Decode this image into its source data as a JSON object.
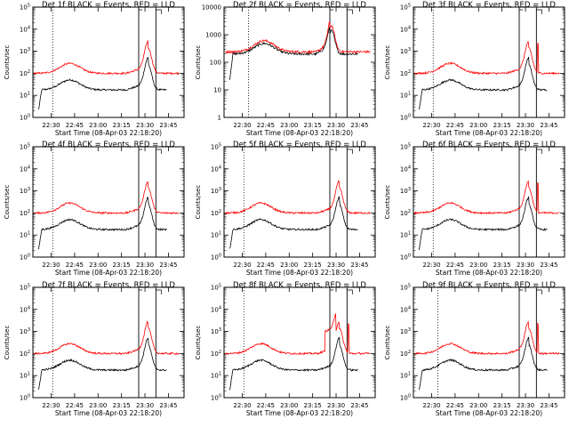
{
  "chart_data": [
    {
      "type": "line",
      "title": "Det 1f BLACK = Events, RED = LLD",
      "ylabel": "Counts/sec",
      "xlabel": "Start Time (08-Apr-03 22:18:20)",
      "ylim": [
        1,
        100000
      ],
      "y_scale": "log",
      "x_ticks": [
        "22:30",
        "22:45",
        "23:00",
        "23:15",
        "23:30",
        "23:45"
      ],
      "y_ticks": [
        "10^0",
        "10^1",
        "10^2",
        "10^3",
        "10^4",
        "10^5"
      ],
      "series": [
        {
          "name": "BLACK = Events",
          "color": "#000000"
        },
        {
          "name": "RED = LLD",
          "color": "#ff0000"
        }
      ]
    },
    {
      "type": "line",
      "title": "Det 2f BLACK = Events, RED = LLD",
      "ylabel": "Counts/sec",
      "xlabel": "Start Time (08-Apr-03 22:18:20)",
      "ylim": [
        1,
        10000
      ],
      "y_scale": "log",
      "x_ticks": [
        "22:30",
        "22:45",
        "23:00",
        "23:15",
        "23:30",
        "23:45"
      ],
      "y_ticks": [
        "1",
        "10",
        "100",
        "1000",
        "10000"
      ],
      "series": [
        {
          "name": "BLACK = Events",
          "color": "#000000"
        },
        {
          "name": "RED = LLD",
          "color": "#ff0000"
        }
      ]
    },
    {
      "type": "line",
      "title": "Det 3f BLACK = Events, RED = LLD",
      "ylabel": "Counts/sec",
      "xlabel": "Start Time (08-Apr-03 22:18:20)",
      "ylim": [
        1,
        100000
      ],
      "y_scale": "log",
      "x_ticks": [
        "22:30",
        "22:45",
        "23:00",
        "23:15",
        "23:30",
        "23:45"
      ],
      "y_ticks": [
        "10^0",
        "10^1",
        "10^2",
        "10^3",
        "10^4",
        "10^5"
      ],
      "series": [
        {
          "name": "BLACK = Events",
          "color": "#000000"
        },
        {
          "name": "RED = LLD",
          "color": "#ff0000"
        }
      ]
    },
    {
      "type": "line",
      "title": "Det 4f BLACK = Events, RED = LLD",
      "ylabel": "Counts/sec",
      "xlabel": "Start Time (08-Apr-03 22:18:20)",
      "ylim": [
        1,
        100000
      ],
      "y_scale": "log",
      "x_ticks": [
        "22:30",
        "22:45",
        "23:00",
        "23:15",
        "23:30",
        "23:45"
      ],
      "y_ticks": [
        "10^0",
        "10^1",
        "10^2",
        "10^3",
        "10^4",
        "10^5"
      ],
      "series": [
        {
          "name": "BLACK = Events",
          "color": "#000000"
        },
        {
          "name": "RED = LLD",
          "color": "#ff0000"
        }
      ]
    },
    {
      "type": "line",
      "title": "Det 5f BLACK = Events, RED = LLD",
      "ylabel": "Counts/sec",
      "xlabel": "Start Time (08-Apr-03 22:18:20)",
      "ylim": [
        1,
        100000
      ],
      "y_scale": "log",
      "x_ticks": [
        "22:30",
        "22:45",
        "23:00",
        "23:15",
        "23:30",
        "23:45"
      ],
      "y_ticks": [
        "10^0",
        "10^1",
        "10^2",
        "10^3",
        "10^4",
        "10^5"
      ],
      "series": [
        {
          "name": "BLACK = Events",
          "color": "#000000"
        },
        {
          "name": "RED = LLD",
          "color": "#ff0000"
        }
      ]
    },
    {
      "type": "line",
      "title": "Det 6f BLACK = Events, RED = LLD",
      "ylabel": "Counts/sec",
      "xlabel": "Start Time (08-Apr-03 22:18:20)",
      "ylim": [
        1,
        100000
      ],
      "y_scale": "log",
      "x_ticks": [
        "22:30",
        "22:45",
        "23:00",
        "23:15",
        "23:30",
        "23:45"
      ],
      "y_ticks": [
        "10^0",
        "10^1",
        "10^2",
        "10^3",
        "10^4",
        "10^5"
      ],
      "series": [
        {
          "name": "BLACK = Events",
          "color": "#000000"
        },
        {
          "name": "RED = LLD",
          "color": "#ff0000"
        }
      ]
    },
    {
      "type": "line",
      "title": "Det 7f BLACK = Events, RED = LLD",
      "ylabel": "Counts/sec",
      "xlabel": "Start Time (08-Apr-03 22:18:20)",
      "ylim": [
        1,
        100000
      ],
      "y_scale": "log",
      "x_ticks": [
        "22:30",
        "22:45",
        "23:00",
        "23:15",
        "23:30",
        "23:45"
      ],
      "y_ticks": [
        "10^0",
        "10^1",
        "10^2",
        "10^3",
        "10^4",
        "10^5"
      ],
      "series": [
        {
          "name": "BLACK = Events",
          "color": "#000000"
        },
        {
          "name": "RED = LLD",
          "color": "#ff0000"
        }
      ]
    },
    {
      "type": "line",
      "title": "Det 8f BLACK = Events, RED = LLD",
      "ylabel": "Counts/sec",
      "xlabel": "Start Time (08-Apr-03 22:18:20)",
      "ylim": [
        1,
        100000
      ],
      "y_scale": "log",
      "x_ticks": [
        "22:30",
        "22:45",
        "23:00",
        "23:15",
        "23:30",
        "23:45"
      ],
      "y_ticks": [
        "10^0",
        "10^1",
        "10^2",
        "10^3",
        "10^4",
        "10^5"
      ],
      "series": [
        {
          "name": "BLACK = Events",
          "color": "#000000"
        },
        {
          "name": "RED = LLD",
          "color": "#ff0000"
        }
      ]
    },
    {
      "type": "line",
      "title": "Det 9f BLACK = Events, RED = LLD",
      "ylabel": "Counts/sec",
      "xlabel": "Start Time (08-Apr-03 22:18:20)",
      "ylim": [
        1,
        100000
      ],
      "y_scale": "log",
      "x_ticks": [
        "22:30",
        "22:45",
        "23:00",
        "23:15",
        "23:30",
        "23:45"
      ],
      "y_ticks": [
        "10^0",
        "10^1",
        "10^2",
        "10^3",
        "10^4",
        "10^5"
      ],
      "series": [
        {
          "name": "BLACK = Events",
          "color": "#000000"
        },
        {
          "name": "RED = LLD",
          "color": "#ff0000"
        }
      ]
    }
  ]
}
